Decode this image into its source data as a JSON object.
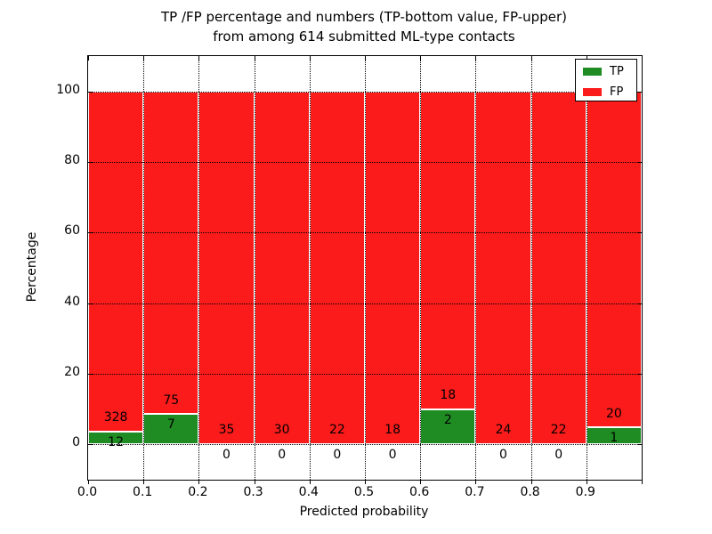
{
  "title": {
    "line1": "TP /FP percentage and numbers (TP-bottom value, FP-upper)",
    "line2": "from among 614 submitted ML-type contacts"
  },
  "axes": {
    "x_label": "Predicted probability",
    "y_label": "Percentage",
    "x_ticks": [
      {
        "label": "0.0",
        "value": 0.0
      },
      {
        "label": "0.1",
        "value": 0.1
      },
      {
        "label": "0.2",
        "value": 0.2
      },
      {
        "label": "0.3",
        "value": 0.3
      },
      {
        "label": "0.4",
        "value": 0.4
      },
      {
        "label": "0.5",
        "value": 0.5
      },
      {
        "label": "0.6",
        "value": 0.6
      },
      {
        "label": "0.7",
        "value": 0.7
      },
      {
        "label": "0.8",
        "value": 0.8
      },
      {
        "label": "0.9",
        "value": 0.9
      }
    ],
    "y_ticks": [
      {
        "label": "0",
        "value": 0
      },
      {
        "label": "20",
        "value": 20
      },
      {
        "label": "40",
        "value": 40
      },
      {
        "label": "60",
        "value": 60
      },
      {
        "label": "80",
        "value": 80
      },
      {
        "label": "100",
        "value": 100
      }
    ]
  },
  "legend": {
    "items": [
      {
        "label": "TP",
        "color": "#1e8c22"
      },
      {
        "label": "FP",
        "color": "#fb1b1b"
      }
    ]
  },
  "colors": {
    "tp_green": "#1e8c22",
    "fp_red": "#fb1b1b",
    "bar_edge": "#ffffff",
    "grid": "#000000"
  },
  "chart_data": {
    "type": "bar",
    "stacked": true,
    "title": "TP /FP percentage and numbers (TP-bottom value, FP-upper) from among 614 submitted ML-type contacts",
    "xlabel": "Predicted probability",
    "ylabel": "Percentage",
    "xlim": [
      0.0,
      1.0
    ],
    "ylim": [
      -10,
      110
    ],
    "grid": true,
    "legend_position": "upper right",
    "bin_width": 0.1,
    "bin_starts": [
      0.0,
      0.1,
      0.2,
      0.3,
      0.4,
      0.5,
      0.6,
      0.7,
      0.8,
      0.9
    ],
    "categories": [
      "0.0-0.1",
      "0.1-0.2",
      "0.2-0.3",
      "0.3-0.4",
      "0.4-0.5",
      "0.5-0.6",
      "0.6-0.7",
      "0.7-0.8",
      "0.8-0.9",
      "0.9-1.0"
    ],
    "total_contacts": 614,
    "series": [
      {
        "name": "TP",
        "color": "#1e8c22",
        "counts": [
          12,
          7,
          0,
          0,
          0,
          0,
          2,
          0,
          0,
          1
        ],
        "pct": [
          3.53,
          8.54,
          0,
          0,
          0,
          0,
          10.0,
          0,
          0,
          4.76
        ]
      },
      {
        "name": "FP",
        "color": "#fb1b1b",
        "counts": [
          328,
          75,
          35,
          30,
          22,
          18,
          18,
          24,
          22,
          20
        ],
        "pct": [
          96.47,
          91.46,
          100,
          100,
          100,
          100,
          90.0,
          100,
          100,
          95.24
        ]
      }
    ],
    "annotation_note": "FP count printed above green segment top, TP count printed below green segment top"
  }
}
